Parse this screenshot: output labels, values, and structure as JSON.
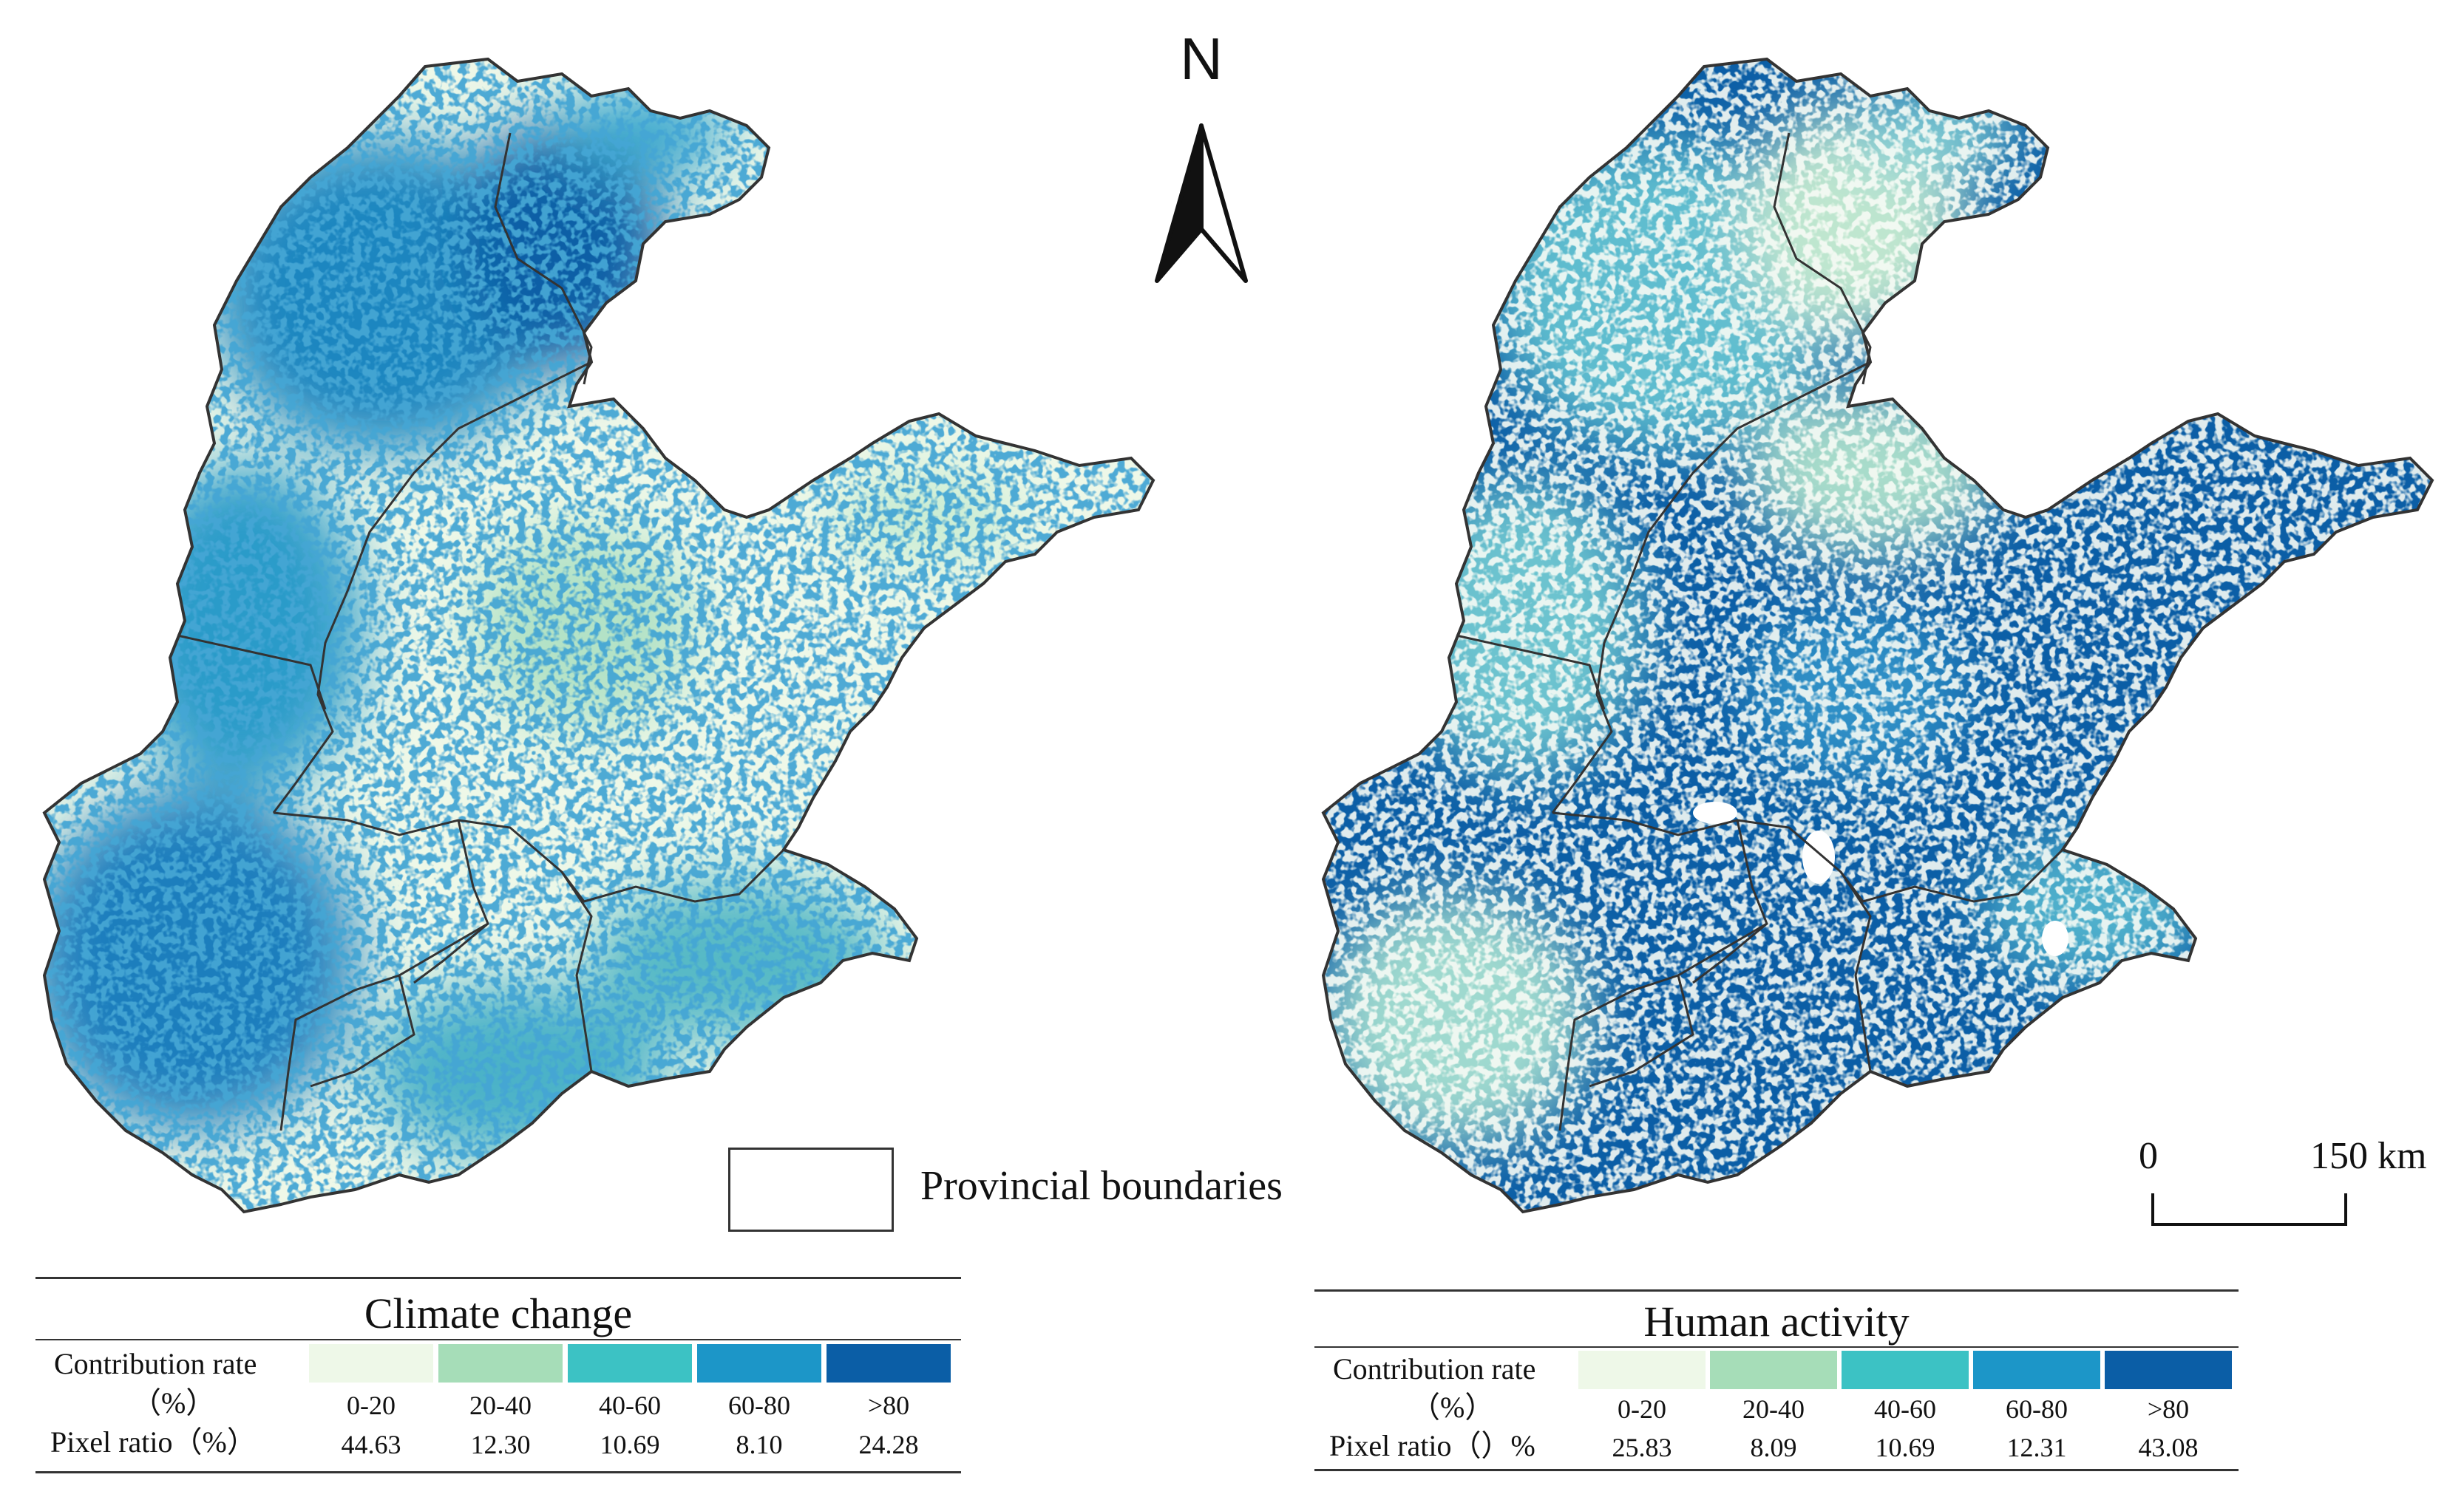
{
  "north_arrow": {
    "letter": "N"
  },
  "legend": {
    "label": "Provincial boundaries"
  },
  "scale_bar": {
    "start_label": "0",
    "end_label": "150 km"
  },
  "class_colors": [
    "#eef8e8",
    "#a6ddb8",
    "#3cc2c4",
    "#1c96c8",
    "#0b5ea6"
  ],
  "maps": [
    {
      "name": "climate-change-map"
    },
    {
      "name": "human-activity-map"
    }
  ],
  "tables": [
    {
      "title": "Climate change",
      "row_label_contribution": "Contribution rate",
      "row_label_percent": "（%）",
      "row_label_pixel": "Pixel ratio（%）",
      "categories": [
        "0-20",
        "20-40",
        "40-60",
        "60-80",
        ">80"
      ],
      "pixel_ratios": [
        "44.63",
        "12.30",
        "10.69",
        "8.10",
        "24.28"
      ]
    },
    {
      "title": "Human activity",
      "row_label_contribution": "Contribution rate",
      "row_label_percent": "（%）",
      "row_label_pixel": "Pixel ratio（）%",
      "categories": [
        "0-20",
        "20-40",
        "40-60",
        "60-80",
        ">80"
      ],
      "pixel_ratios": [
        "25.83",
        "8.09",
        "10.69",
        "12.31",
        "43.08"
      ]
    }
  ]
}
